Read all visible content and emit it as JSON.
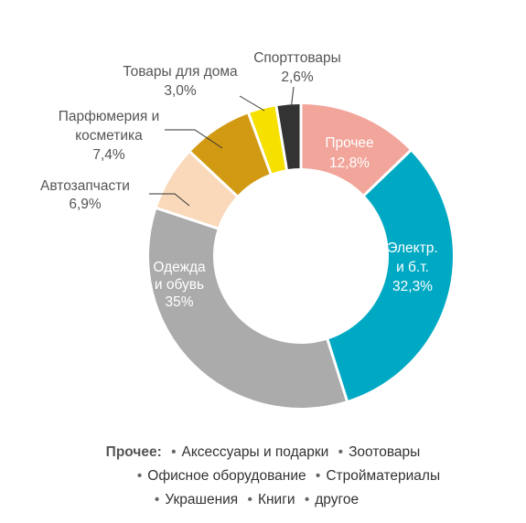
{
  "chart_data": {
    "type": "pie",
    "donut": true,
    "slices": [
      {
        "name": "Прочее",
        "value_label": "12,8%",
        "value": 12.8,
        "color": "#f2a59a",
        "text_color": "#ffffff"
      },
      {
        "name": "Электр. и б.т.",
        "value_label": "32,3%",
        "value": 32.3,
        "color": "#00a9c3",
        "text_color": "#ffffff"
      },
      {
        "name": "Одежда и обувь",
        "value_label": "35%",
        "value": 35.0,
        "color": "#ababab",
        "text_color": "#ffffff"
      },
      {
        "name": "Автозапчасти",
        "value_label": "6,9%",
        "value": 6.9,
        "color": "#fad9bb",
        "text_color": "#555555"
      },
      {
        "name": "Парфюмерия и косметика",
        "value_label": "7,4%",
        "value": 7.4,
        "color": "#d29a13",
        "text_color": "#555555"
      },
      {
        "name": "Товары для дома",
        "value_label": "3,0%",
        "value": 3.0,
        "color": "#f5e000",
        "text_color": "#555555"
      },
      {
        "name": "Спорттовары",
        "value_label": "2,6%",
        "value": 2.6,
        "color": "#333333",
        "text_color": "#555555"
      }
    ],
    "labels": {
      "prochee": [
        "Прочее",
        "12,8%"
      ],
      "elektr": [
        "Электр.",
        "и б.т.",
        "32,3%"
      ],
      "odezhda": [
        "Одежда",
        "и обувь",
        "35%"
      ],
      "avto": [
        "Автозапчасти",
        "6,9%"
      ],
      "parf": [
        "Парфюмерия и",
        "косметика",
        "7,4%"
      ],
      "tovary": [
        "Товары для дома",
        "3,0%"
      ],
      "sport": [
        "Спорттовары",
        "2,6%"
      ]
    }
  },
  "footer": {
    "heading": "Прочее:",
    "line1": [
      "Аксессуары и подарки",
      "Зоотовары"
    ],
    "line2": [
      "Офисное оборудование",
      "Стройматериалы"
    ],
    "line3": [
      "Украшения",
      "Книги",
      "другое"
    ]
  }
}
